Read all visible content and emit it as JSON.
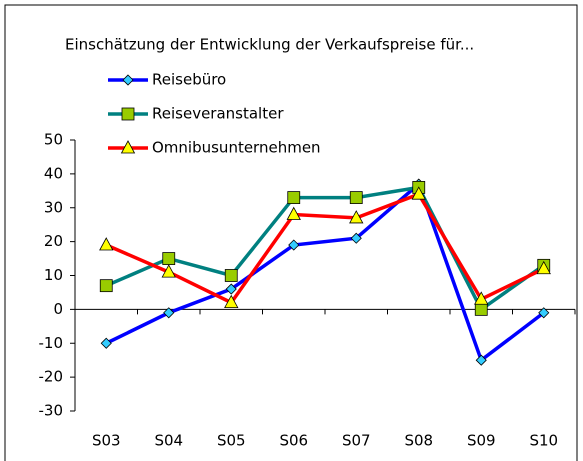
{
  "chart_data": {
    "type": "line",
    "title": "Einschätzung der Entwicklung der Verkaufspreise für...",
    "categories": [
      "S03",
      "S04",
      "S05",
      "S06",
      "S07",
      "S08",
      "S09",
      "S10"
    ],
    "series": [
      {
        "name": "Reisebüro",
        "color": "#0000ff",
        "marker": "diamond",
        "marker_color": "#33ccff",
        "values": [
          -10,
          -1,
          6,
          19,
          21,
          37,
          -15,
          -1
        ]
      },
      {
        "name": "Reiseveranstalter",
        "color": "#008080",
        "marker": "square",
        "marker_color": "#99cc00",
        "values": [
          7,
          15,
          10,
          33,
          33,
          36,
          0,
          13
        ]
      },
      {
        "name": "Omnibusunternehmen",
        "color": "#ff0000",
        "marker": "triangle",
        "marker_color": "#ffff00",
        "values": [
          19,
          11,
          2,
          28,
          27,
          34,
          3,
          12
        ]
      }
    ],
    "ylim": [
      -30,
      50
    ],
    "yticks": [
      -30,
      -20,
      -10,
      0,
      10,
      20,
      30,
      40,
      50
    ],
    "grid": false
  }
}
